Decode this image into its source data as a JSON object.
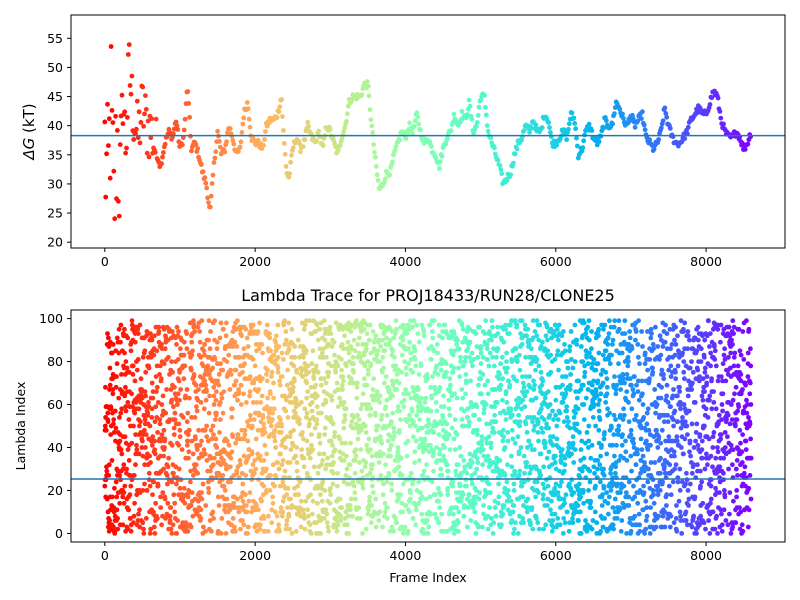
{
  "chart_data": [
    {
      "type": "scatter",
      "title": "",
      "xlabel": "",
      "ylabel": "ΔG (kT)",
      "ylabel_symbol": "ΔG",
      "ylabel_unit": "(kT)",
      "xlim": [
        -450,
        9050
      ],
      "ylim": [
        19,
        59
      ],
      "xticks": [
        0,
        2000,
        4000,
        6000,
        8000
      ],
      "yticks": [
        20,
        25,
        30,
        35,
        40,
        45,
        50,
        55
      ],
      "hline": 38.3,
      "hline_color": "#1f77b4",
      "colormap": "rainbow (red at first frame, violet at last frame)",
      "n_frames": 8600,
      "series": [
        {
          "trace": [
            [
              0,
              36
            ],
            [
              40,
              28
            ],
            [
              80,
              44
            ],
            [
              120,
              25
            ],
            [
              160,
              38
            ],
            [
              200,
              32
            ],
            [
              240,
              45
            ],
            [
              280,
              36
            ],
            [
              320,
              50
            ],
            [
              380,
              42
            ],
            [
              440,
              38
            ],
            [
              500,
              43
            ],
            [
              560,
              40
            ],
            [
              620,
              39
            ],
            [
              680,
              36
            ],
            [
              740,
              33
            ],
            [
              800,
              37
            ],
            [
              850,
              39
            ],
            [
              900,
              38
            ],
            [
              950,
              41
            ],
            [
              1000,
              36
            ],
            [
              1050,
              38
            ],
            [
              1100,
              47
            ],
            [
              1150,
              36
            ],
            [
              1200,
              37
            ],
            [
              1250,
              35
            ],
            [
              1300,
              32
            ],
            [
              1350,
              30
            ],
            [
              1400,
              25
            ],
            [
              1450,
              33
            ],
            [
              1500,
              39
            ],
            [
              1550,
              35
            ],
            [
              1600,
              36
            ],
            [
              1650,
              40
            ],
            [
              1700,
              38
            ],
            [
              1750,
              35
            ],
            [
              1800,
              36
            ],
            [
              1850,
              42
            ],
            [
              1900,
              44
            ],
            [
              1950,
              38
            ],
            [
              2000,
              37
            ],
            [
              2050,
              37
            ],
            [
              2100,
              36
            ],
            [
              2150,
              40
            ],
            [
              2200,
              41
            ],
            [
              2250,
              41
            ],
            [
              2300,
              42
            ],
            [
              2350,
              45
            ],
            [
              2380,
              38
            ],
            [
              2420,
              32
            ],
            [
              2450,
              31
            ],
            [
              2500,
              36
            ],
            [
              2550,
              38
            ],
            [
              2600,
              36
            ],
            [
              2650,
              37
            ],
            [
              2700,
              40
            ],
            [
              2750,
              38
            ],
            [
              2800,
              37
            ],
            [
              2850,
              39
            ],
            [
              2900,
              36
            ],
            [
              2950,
              40
            ],
            [
              3000,
              39
            ],
            [
              3050,
              37
            ],
            [
              3100,
              35
            ],
            [
              3150,
              38
            ],
            [
              3200,
              40
            ],
            [
              3250,
              44
            ],
            [
              3300,
              45
            ],
            [
              3350,
              45
            ],
            [
              3400,
              45
            ],
            [
              3450,
              47
            ],
            [
              3500,
              47
            ],
            [
              3550,
              40
            ],
            [
              3600,
              34
            ],
            [
              3650,
              29
            ],
            [
              3700,
              30
            ],
            [
              3750,
              32
            ],
            [
              3800,
              32
            ],
            [
              3850,
              35
            ],
            [
              3900,
              37
            ],
            [
              3950,
              39
            ],
            [
              4000,
              38
            ],
            [
              4050,
              40
            ],
            [
              4100,
              39
            ],
            [
              4150,
              42
            ],
            [
              4200,
              39
            ],
            [
              4250,
              37
            ],
            [
              4300,
              38
            ],
            [
              4350,
              36
            ],
            [
              4400,
              35
            ],
            [
              4450,
              33
            ],
            [
              4500,
              36
            ],
            [
              4550,
              38
            ],
            [
              4600,
              39
            ],
            [
              4650,
              42
            ],
            [
              4700,
              40
            ],
            [
              4750,
              42
            ],
            [
              4800,
              41
            ],
            [
              4850,
              44
            ],
            [
              4900,
              39
            ],
            [
              4950,
              40
            ],
            [
              5000,
              45
            ],
            [
              5050,
              45
            ],
            [
              5100,
              39
            ],
            [
              5150,
              37
            ],
            [
              5200,
              35
            ],
            [
              5250,
              33
            ],
            [
              5300,
              30
            ],
            [
              5350,
              31
            ],
            [
              5400,
              32
            ],
            [
              5450,
              35
            ],
            [
              5500,
              37
            ],
            [
              5550,
              38
            ],
            [
              5600,
              40
            ],
            [
              5650,
              39
            ],
            [
              5700,
              41
            ],
            [
              5750,
              39
            ],
            [
              5800,
              39
            ],
            [
              5850,
              42
            ],
            [
              5900,
              41
            ],
            [
              5950,
              37
            ],
            [
              6000,
              37
            ],
            [
              6050,
              38
            ],
            [
              6100,
              39
            ],
            [
              6150,
              38
            ],
            [
              6200,
              42
            ],
            [
              6250,
              41
            ],
            [
              6300,
              35
            ],
            [
              6350,
              36
            ],
            [
              6400,
              39
            ],
            [
              6450,
              40
            ],
            [
              6500,
              38
            ],
            [
              6550,
              37
            ],
            [
              6600,
              38
            ],
            [
              6650,
              41
            ],
            [
              6700,
              40
            ],
            [
              6750,
              40
            ],
            [
              6800,
              44
            ],
            [
              6850,
              43
            ],
            [
              6900,
              41
            ],
            [
              6950,
              40
            ],
            [
              7000,
              42
            ],
            [
              7050,
              40
            ],
            [
              7100,
              41
            ],
            [
              7150,
              42
            ],
            [
              7200,
              38
            ],
            [
              7250,
              37
            ],
            [
              7300,
              36
            ],
            [
              7350,
              37
            ],
            [
              7400,
              39
            ],
            [
              7450,
              43
            ],
            [
              7500,
              40
            ],
            [
              7550,
              38
            ],
            [
              7600,
              37
            ],
            [
              7650,
              37
            ],
            [
              7700,
              38
            ],
            [
              7750,
              39
            ],
            [
              7800,
              41
            ],
            [
              7850,
              42
            ],
            [
              7900,
              43
            ],
            [
              7950,
              42
            ],
            [
              8000,
              42
            ],
            [
              8050,
              44
            ],
            [
              8100,
              46
            ],
            [
              8150,
              45
            ],
            [
              8200,
              41
            ],
            [
              8250,
              39
            ],
            [
              8300,
              38
            ],
            [
              8350,
              38
            ],
            [
              8400,
              39
            ],
            [
              8450,
              38
            ],
            [
              8500,
              36
            ],
            [
              8550,
              37
            ],
            [
              8600,
              39
            ]
          ]
        }
      ]
    },
    {
      "type": "scatter",
      "title": "Lambda Trace for PROJ18433/RUN28/CLONE25",
      "xlabel": "Frame Index",
      "ylabel": "Lambda Index",
      "xlim": [
        -450,
        9050
      ],
      "ylim": [
        -4,
        104
      ],
      "xticks": [
        0,
        2000,
        4000,
        6000,
        8000
      ],
      "yticks": [
        0,
        20,
        40,
        60,
        80,
        100
      ],
      "hline": 25.3,
      "hline_color": "#1f77b4",
      "colormap": "rainbow (red at first frame, violet at last frame)",
      "n_frames": 8600,
      "value_range": [
        0,
        99
      ]
    }
  ]
}
